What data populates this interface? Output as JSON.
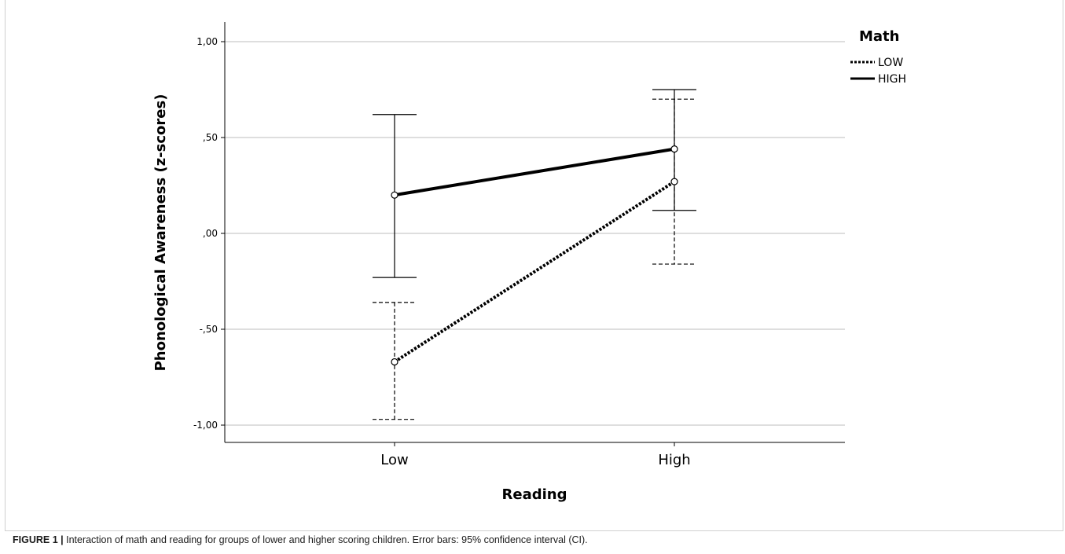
{
  "chart_data": {
    "type": "line",
    "xlabel": "Reading",
    "ylabel": "Phonological Awareness (z-scores)",
    "categories": [
      "Low",
      "High"
    ],
    "ylim": [
      -1.1,
      1.12
    ],
    "yticks": [
      1.0,
      0.5,
      0.0,
      -0.5,
      -1.0
    ],
    "ytick_labels": [
      "1,00",
      ",50",
      ",00",
      "-,50",
      "-1,00"
    ],
    "grid": true,
    "legend": {
      "title": "Math",
      "placement": "top-right"
    },
    "series": [
      {
        "name": "LOW",
        "style": "dotted",
        "values": [
          -0.67,
          0.27
        ],
        "ci_low": [
          -0.97,
          -0.16
        ],
        "ci_high": [
          -0.36,
          0.7
        ],
        "error_bar_style": "dashed"
      },
      {
        "name": "HIGH",
        "style": "solid",
        "values": [
          0.2,
          0.44
        ],
        "ci_low": [
          -0.23,
          0.12
        ],
        "ci_high": [
          0.62,
          0.75
        ],
        "error_bar_style": "solid"
      }
    ]
  },
  "caption": {
    "label": "FIGURE 1 |",
    "text": " Interaction of math and reading for groups of lower and higher scoring children. Error bars: 95% confidence interval (CI)."
  },
  "colors": {
    "line": "#000000",
    "grid": "#bdbdbd",
    "frame": "#d0d0d0"
  }
}
